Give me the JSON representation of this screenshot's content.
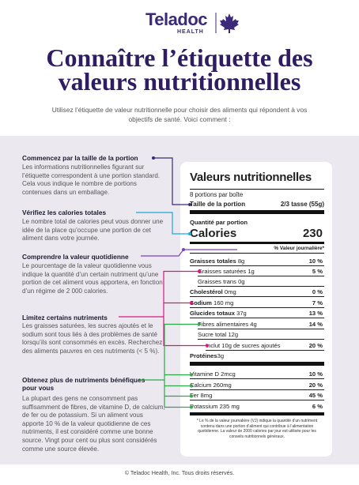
{
  "header": {
    "logo": "Teladoc",
    "logo_sub": "HEALTH"
  },
  "title": [
    "Connaître l’étiquette des",
    "valeurs nutritionnelles"
  ],
  "intro": "Utilisez l’étiquette de valeur nutritionnelle pour choisir des aliments qui répondent à vos objectifs de santé. Voici comment :",
  "sections": [
    {
      "heading": "Commencez par la taille de la portion",
      "text": "Les informations nutritionnelles figurant sur l’étiquette correspondent à une portion standard. Cela vous indique le nombre de portions contenues dans un emballage."
    },
    {
      "heading": "Vérifiez les calories totales",
      "text": "Le nombre total de calories peut vous donner une idée de la place qu’occupe une portion de cet aliment dans votre journée."
    },
    {
      "heading": "Comprendre la valeur quotidienne",
      "text": "Le pourcentage de la valeur quotidienne vous indique la quantité d’un certain nutriment qu’une portion de cet aliment vous apportera, en fonction d’un régime de 2 000 calories."
    },
    {
      "heading": "Limitez certains nutriments",
      "text": "Les graisses saturées, les sucres ajoutés et le sodium sont tous liés à des problèmes de santé lorsqu’ils sont consommés en excès. Recherchez des aliments pauvres en ces nutriments (< 5 %)."
    },
    {
      "heading": "Obtenez plus de nutriments bénéfiques pour vous",
      "text": "La plupart des gens ne consomment pas suffisamment de fibres, de vitamine D, de calcium, de fer ou de potassium. Si un aliment vous apporte 10 % de la valeur quotidienne de ces nutriments, il est considéré comme une bonne source. Vingt pour cent ou plus sont considérés comme une source élevée."
    }
  ],
  "label": {
    "title": "Valeurs nutritionnelles",
    "servings": "8 portions par boîte",
    "serving_size_label": "Taille de la portion",
    "serving_size": "2/3 tasse (55g)",
    "amount_per_serving": "Quantité par portion",
    "calories_label": "Calories",
    "calories": 230,
    "dv_header": "% Valeur journalière*",
    "rows": [
      {
        "name": "Graisses totales",
        "amount": "8g",
        "dv": "10 %"
      },
      {
        "name": "Graisses saturées",
        "amount": "1g",
        "dv": "5 %"
      },
      {
        "name": "Graisses trans",
        "amount": "0g"
      },
      {
        "name": "Cholestérol",
        "amount": "0mg",
        "dv": "0 %"
      },
      {
        "name": "Sodium",
        "amount": "160 mg",
        "dv": "7 %"
      },
      {
        "name": "Glucides totaux",
        "amount": "37g",
        "dv": "13 %"
      },
      {
        "name": "Fibres alimentaires",
        "amount": "4g",
        "dv": "14 %"
      },
      {
        "name": "Sucre total",
        "amount": "12g"
      },
      {
        "name": "Inclut 10g de sucres ajoutés",
        "dv": "20 %"
      },
      {
        "name": "Protéines",
        "amount": "3g"
      },
      {
        "name": "Vitamine D",
        "amount": "2mcg",
        "dv": "10 %"
      },
      {
        "name": "Calcium",
        "amount": "260mg",
        "dv": "20 %"
      },
      {
        "name": "Fer",
        "amount": "8mg",
        "dv": "45 %"
      },
      {
        "name": "Potassium",
        "amount": "235 mg",
        "dv": "6 %"
      }
    ],
    "footnote": "* Le % de la valeur journalière (VJ) indique la quantité d’un nutriment contenu dans une portion d’aliment qui contribue à l’alimentation quotidienne. La valeur de 2000 calories par jour est utilisée pour les conseils nutritionnels généraux."
  },
  "footer": "© Teladoc Health, Inc. Tous droits réservés."
}
